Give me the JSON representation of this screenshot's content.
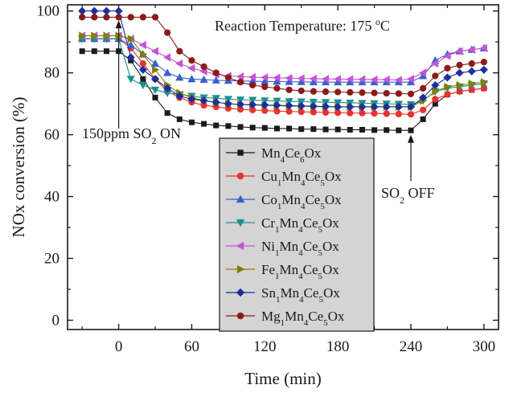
{
  "chart_data": {
    "type": "line",
    "title": "",
    "xlabel": "Time (min)",
    "ylabel": "NOx conversion (%)",
    "xlim": [
      -42,
      312
    ],
    "ylim": [
      -3,
      102
    ],
    "xticks": [
      0,
      60,
      120,
      180,
      240,
      300
    ],
    "yticks": [
      0,
      20,
      40,
      60,
      80,
      100
    ],
    "grid": false,
    "legend_position": "center",
    "annotations": [
      {
        "id": "reaction-temp",
        "text": "Reaction Temperature: 175 °C",
        "prefix": "Reaction Temperature: 175 ",
        "sup": "o",
        "suffix": "C"
      },
      {
        "id": "so2-on",
        "text": "150ppm SO2 ON",
        "prefix": "150ppm SO",
        "sub": "2",
        "suffix": " ON",
        "arrow_x": 0,
        "arrow_y_from": 62,
        "arrow_y_to": 97
      },
      {
        "id": "so2-off",
        "text": "SO2 OFF",
        "prefix": "SO",
        "sub": "2",
        "suffix": " OFF",
        "arrow_x": 240,
        "arrow_y_from": 45,
        "arrow_y_to": 60
      }
    ],
    "x": [
      -30,
      -20,
      -10,
      0,
      10,
      20,
      30,
      40,
      50,
      60,
      70,
      80,
      90,
      100,
      110,
      120,
      130,
      140,
      150,
      160,
      170,
      180,
      190,
      200,
      210,
      220,
      230,
      240,
      250,
      260,
      270,
      280,
      290,
      300
    ],
    "series": [
      {
        "name": "Mn4Ce6Ox",
        "color": "#1a1a1a",
        "marker": "square",
        "label_parts": [
          [
            "Mn",
            ""
          ],
          [
            "4",
            "sub"
          ],
          [
            "Ce",
            ""
          ],
          [
            "6",
            "sub"
          ],
          [
            "Ox",
            ""
          ]
        ],
        "values": [
          87,
          87,
          87,
          87,
          84,
          78,
          72,
          67,
          65,
          64,
          63.5,
          63,
          62.8,
          62.5,
          62.3,
          62.2,
          62,
          62,
          61.8,
          61.8,
          61.7,
          61.7,
          61.6,
          61.6,
          61.5,
          61.5,
          61.4,
          61.4,
          65,
          70,
          73,
          74,
          74.5,
          75
        ]
      },
      {
        "name": "Cu1Mn4Ce5Ox",
        "color": "#e8322d",
        "marker": "circle",
        "label_parts": [
          [
            "Cu",
            ""
          ],
          [
            "1",
            "sub"
          ],
          [
            "Mn",
            ""
          ],
          [
            "4",
            "sub"
          ],
          [
            "Ce",
            ""
          ],
          [
            "5",
            "sub"
          ],
          [
            "Ox",
            ""
          ]
        ],
        "values": [
          91,
          91,
          91,
          91,
          88,
          83,
          78,
          74,
          72,
          70.5,
          69.5,
          69,
          68.5,
          68.2,
          68,
          67.8,
          67.6,
          67.5,
          67.4,
          67.3,
          67.2,
          67.1,
          67,
          67,
          66.9,
          66.8,
          66.7,
          66.6,
          68,
          71.5,
          73,
          74,
          74.5,
          75
        ]
      },
      {
        "name": "Co1Mn4Ce5Ox",
        "color": "#3a5fcf",
        "marker": "triangle-up",
        "label_parts": [
          [
            "Co",
            ""
          ],
          [
            "1",
            "sub"
          ],
          [
            "Mn",
            ""
          ],
          [
            "4",
            "sub"
          ],
          [
            "Ce",
            ""
          ],
          [
            "5",
            "sub"
          ],
          [
            "Ox",
            ""
          ]
        ],
        "values": [
          91,
          91,
          91,
          91,
          89,
          86,
          83,
          80,
          78.5,
          78,
          77.8,
          77.6,
          77.5,
          77.4,
          77.3,
          77.2,
          77.2,
          77.1,
          77.1,
          77,
          77,
          77,
          77,
          77,
          77,
          77,
          77,
          77,
          79,
          84,
          86,
          87,
          87.5,
          88
        ]
      },
      {
        "name": "Cr1Mn4Ce5Ox",
        "color": "#1f8f8f",
        "marker": "triangle-down",
        "label_parts": [
          [
            "Cr",
            ""
          ],
          [
            "1",
            "sub"
          ],
          [
            "Mn",
            ""
          ],
          [
            "4",
            "sub"
          ],
          [
            "Ce",
            ""
          ],
          [
            "5",
            "sub"
          ],
          [
            "Ox",
            ""
          ]
        ],
        "values": [
          91,
          91,
          91,
          91,
          78,
          76,
          74.5,
          73.5,
          73,
          72.5,
          72,
          71.8,
          71.5,
          71.3,
          71.2,
          71,
          70.9,
          70.8,
          70.7,
          70.6,
          70.5,
          70.4,
          70.3,
          70.2,
          70.1,
          70,
          69.9,
          69.8,
          71,
          74,
          75,
          75.5,
          76,
          76.5
        ]
      },
      {
        "name": "Ni1Mn4Ce5Ox",
        "color": "#c455d4",
        "marker": "triangle-left",
        "label_parts": [
          [
            "Ni",
            ""
          ],
          [
            "1",
            "sub"
          ],
          [
            "Mn",
            ""
          ],
          [
            "4",
            "sub"
          ],
          [
            "Ce",
            ""
          ],
          [
            "5",
            "sub"
          ],
          [
            "Ox",
            ""
          ]
        ],
        "values": [
          92,
          92,
          92,
          92,
          91,
          89,
          87,
          85,
          83,
          81.5,
          80.5,
          79.5,
          79,
          78.8,
          78.6,
          78.5,
          78.4,
          78.3,
          78.2,
          78.1,
          78,
          78,
          77.9,
          77.9,
          77.8,
          77.8,
          77.7,
          78,
          80,
          83,
          85.5,
          87,
          87.5,
          88
        ]
      },
      {
        "name": "Fe1Mn4Ce5Ox",
        "color": "#808000",
        "marker": "triangle-right",
        "label_parts": [
          [
            "Fe",
            ""
          ],
          [
            "1",
            "sub"
          ],
          [
            "Mn",
            ""
          ],
          [
            "4",
            "sub"
          ],
          [
            "Ce",
            ""
          ],
          [
            "5",
            "sub"
          ],
          [
            "Ox",
            ""
          ]
        ],
        "values": [
          92,
          92,
          92,
          92,
          91,
          86,
          81,
          76,
          73.5,
          72,
          71,
          70.5,
          70,
          69.8,
          69.6,
          69.5,
          69.4,
          69.3,
          69.2,
          69.1,
          69,
          69,
          69,
          69,
          69,
          69,
          69,
          69,
          71,
          74,
          75.5,
          76,
          76.5,
          77
        ]
      },
      {
        "name": "Sn1Mn4Ce5Ox",
        "color": "#1c2f9a",
        "marker": "diamond",
        "label_parts": [
          [
            "Sn",
            ""
          ],
          [
            "1",
            "sub"
          ],
          [
            "Mn",
            ""
          ],
          [
            "4",
            "sub"
          ],
          [
            "Ce",
            ""
          ],
          [
            "5",
            "sub"
          ],
          [
            "Ox",
            ""
          ]
        ],
        "values": [
          100,
          100,
          100,
          100,
          85,
          81,
          78,
          75,
          72.5,
          71.5,
          71,
          70.5,
          70,
          69.8,
          69.7,
          69.6,
          69.5,
          69.4,
          69.3,
          69.2,
          69.1,
          69,
          69,
          69,
          69,
          69,
          69,
          69,
          72,
          76,
          78.5,
          80,
          80.5,
          81
        ]
      },
      {
        "name": "Mg1Mn4Ce5Ox",
        "color": "#8b1a1a",
        "marker": "circle",
        "label_parts": [
          [
            "Mg",
            ""
          ],
          [
            "1",
            "sub"
          ],
          [
            "Mn",
            ""
          ],
          [
            "4",
            "sub"
          ],
          [
            "Ce",
            ""
          ],
          [
            "5",
            "sub"
          ],
          [
            "Ox",
            ""
          ]
        ],
        "values": [
          98,
          98,
          98,
          98,
          98,
          98,
          98,
          93,
          87,
          84,
          82,
          80,
          78.5,
          77,
          76,
          75.5,
          75,
          74.5,
          74.2,
          74,
          73.9,
          73.8,
          73.7,
          73.6,
          73.5,
          73.4,
          73.3,
          73.2,
          75,
          79,
          81.5,
          82.5,
          83,
          83.5
        ]
      }
    ]
  }
}
